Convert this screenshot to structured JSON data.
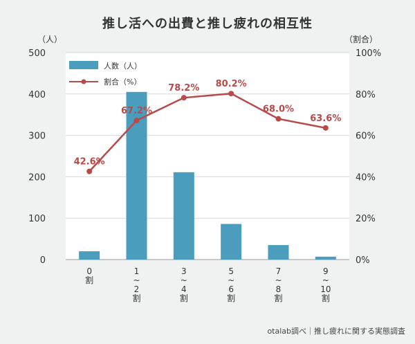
{
  "chart_data": {
    "type": "bar",
    "title": "推し活への出費と推し疲れの相互性",
    "source": "otalab調べ｜推し疲れに関する実態調査",
    "categories": [
      [
        "0",
        "割"
      ],
      [
        "1",
        "~",
        "2",
        "割"
      ],
      [
        "3",
        "~",
        "4",
        "割"
      ],
      [
        "5",
        "~",
        "6",
        "割"
      ],
      [
        "7",
        "~",
        "8",
        "割"
      ],
      [
        "9",
        "~",
        "10",
        "割"
      ]
    ],
    "y_left": {
      "unit_label": "（人）",
      "ylim": [
        0,
        500
      ],
      "ticks": [
        "0",
        "100",
        "200",
        "300",
        "400",
        "500"
      ]
    },
    "y_right": {
      "unit_label": "（割合）",
      "ylim": [
        0,
        100
      ],
      "ticks": [
        "0%",
        "20%",
        "40%",
        "60%",
        "80%",
        "100%"
      ]
    },
    "series": [
      {
        "name": "人数（人）",
        "type": "bar",
        "axis": "left",
        "color": "#4a9dbd",
        "values": [
          20,
          405,
          211,
          86,
          35,
          7
        ]
      },
      {
        "name": "割合（%）",
        "type": "line",
        "axis": "right",
        "color": "#b84a4a",
        "values": [
          42.6,
          67.2,
          78.2,
          80.2,
          68.0,
          63.6
        ],
        "data_labels": [
          "42.6%",
          "67.2%",
          "78.2%",
          "80.2%",
          "68.0%",
          "63.6%"
        ]
      }
    ],
    "grid": true,
    "legend": "top-left"
  }
}
